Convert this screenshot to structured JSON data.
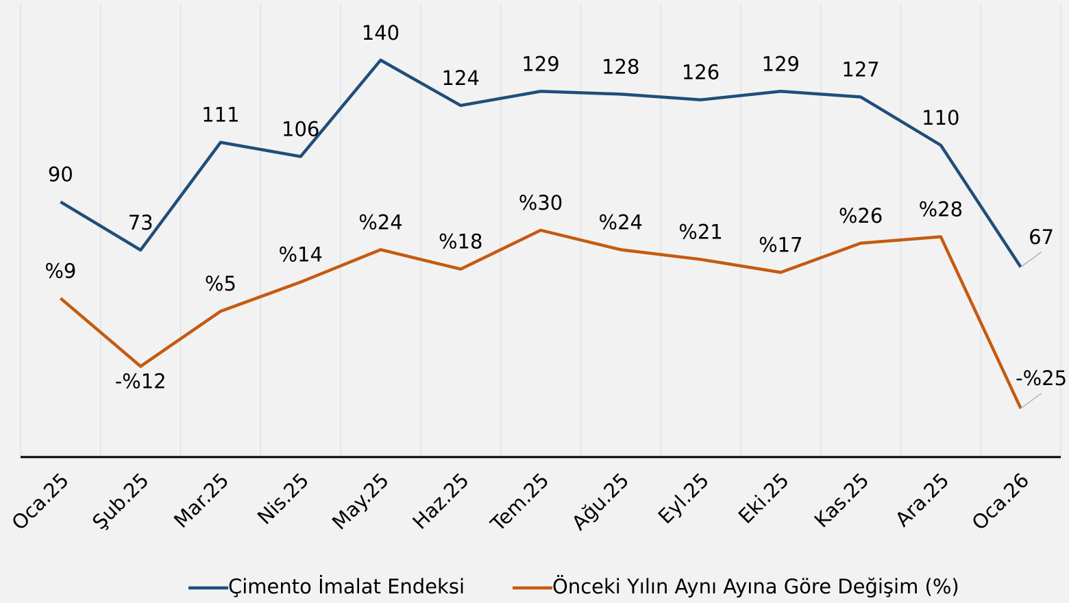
{
  "chart_data": {
    "type": "line",
    "categories": [
      "Oca.25",
      "Şub.25",
      "Mar.25",
      "Nis.25",
      "May.25",
      "Haz.25",
      "Tem.25",
      "Ağu.25",
      "Eyl.25",
      "Eki.25",
      "Kas.25",
      "Ara.25",
      "Oca.26"
    ],
    "series": [
      {
        "name": "Çimento İmalat Endeksi",
        "color": "#1f4e79",
        "values": [
          90,
          73,
          111,
          106,
          140,
          124,
          129,
          128,
          126,
          129,
          127,
          110,
          67
        ]
      },
      {
        "name": "Önceki Yılın Aynı Ayına Göre Değişim (%)",
        "color": "#c55a11",
        "axis": "y2",
        "values": [
          9,
          -12,
          5,
          14,
          24,
          18,
          30,
          24,
          21,
          17,
          26,
          28,
          -25
        ],
        "value_labels": [
          "%9",
          "-%12",
          "%5",
          "%14",
          "%24",
          "%18",
          "%30",
          "%24",
          "%21",
          "%17",
          "%26",
          "%28",
          "-%25"
        ]
      }
    ],
    "ylim": [
      0,
      160
    ],
    "y2lim": [
      -40,
      100
    ],
    "legend": "bottom"
  }
}
